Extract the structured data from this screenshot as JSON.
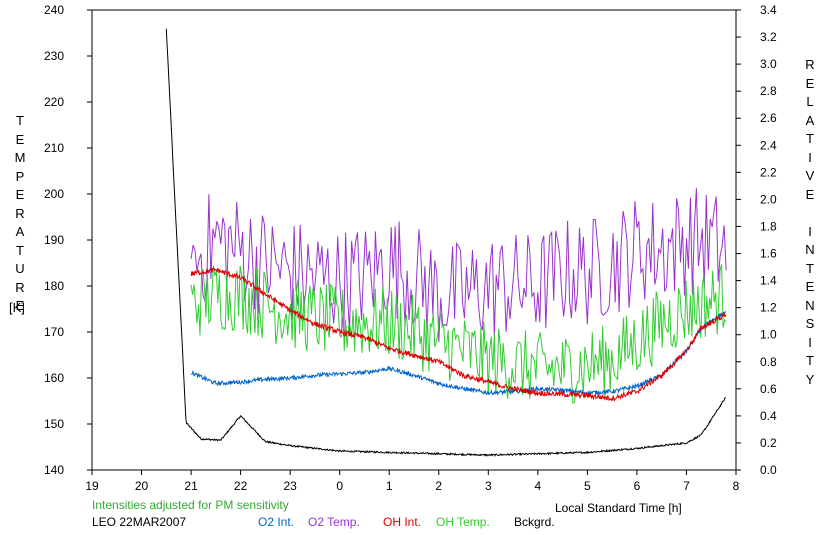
{
  "chart_data": {
    "type": "line",
    "xlabel": "Local Standard Time [h]",
    "ylabel": "TEMPERATURE",
    "ylabel_unit": "[K]",
    "y2label": "RELATIVE INTENSITY",
    "xlim": [
      19,
      32
    ],
    "ylim": [
      140,
      240
    ],
    "y2lim": [
      0,
      3.4
    ],
    "x_ticks": [
      19,
      20,
      21,
      22,
      23,
      24,
      25,
      26,
      27,
      28,
      29,
      30,
      31,
      32
    ],
    "x_tick_labels": [
      "19",
      "20",
      "21",
      "22",
      "23",
      "0",
      "1",
      "2",
      "3",
      "4",
      "5",
      "6",
      "7",
      "8"
    ],
    "y_ticks": [
      140,
      150,
      160,
      170,
      180,
      190,
      200,
      210,
      220,
      230,
      240
    ],
    "y2_ticks": [
      0.0,
      0.2,
      0.4,
      0.6,
      0.8,
      1.0,
      1.2,
      1.4,
      1.6,
      1.8,
      2.0,
      2.2,
      2.4,
      2.6,
      2.8,
      3.0,
      3.2,
      3.4
    ],
    "y2_tick_labels": [
      "0.0",
      "0.2",
      "0.4",
      "0.6",
      "0.8",
      "1.0",
      "1.2",
      "1.4",
      "1.6",
      "1.8",
      "2.0",
      "2.2",
      "2.4",
      "2.6",
      "2.8",
      "3.0",
      "3.2",
      "3.4"
    ],
    "series": [
      {
        "name": "O2 Int.",
        "axis": "right",
        "color": "#0066cc",
        "x": [
          21.0,
          21.5,
          22.0,
          22.5,
          23.0,
          23.5,
          24.0,
          24.5,
          25.0,
          25.5,
          26.0,
          26.5,
          27.0,
          27.5,
          28.0,
          28.5,
          29.0,
          29.5,
          30.0,
          30.5,
          31.0,
          31.3,
          31.8
        ],
        "y": [
          0.72,
          0.64,
          0.65,
          0.67,
          0.68,
          0.7,
          0.71,
          0.72,
          0.75,
          0.7,
          0.64,
          0.6,
          0.57,
          0.58,
          0.6,
          0.59,
          0.57,
          0.58,
          0.62,
          0.7,
          0.88,
          1.05,
          1.17
        ]
      },
      {
        "name": "O2 Temp.",
        "axis": "left",
        "color": "#9933cc",
        "x": [
          21.0,
          21.5,
          22.0,
          22.5,
          23.0,
          23.5,
          24.0,
          24.5,
          25.0,
          25.5,
          26.0,
          26.5,
          27.0,
          27.5,
          28.0,
          28.5,
          29.0,
          29.5,
          30.0,
          30.5,
          31.0,
          31.3,
          31.8
        ],
        "y": [
          185,
          190,
          188,
          185,
          183,
          182,
          181,
          182,
          185,
          182,
          178,
          178,
          180,
          180,
          180,
          183,
          183,
          185,
          188,
          188,
          190,
          190,
          188
        ]
      },
      {
        "name": "OH Int.",
        "axis": "right",
        "color": "#dd0000",
        "x": [
          21.0,
          21.5,
          22.0,
          22.5,
          23.0,
          23.5,
          24.0,
          24.5,
          25.0,
          25.5,
          26.0,
          26.5,
          27.0,
          27.5,
          28.0,
          28.5,
          29.0,
          29.5,
          30.0,
          30.5,
          31.0,
          31.3,
          31.8
        ],
        "y": [
          1.45,
          1.48,
          1.42,
          1.3,
          1.18,
          1.08,
          1.02,
          0.98,
          0.9,
          0.85,
          0.8,
          0.7,
          0.65,
          0.6,
          0.57,
          0.56,
          0.55,
          0.53,
          0.58,
          0.7,
          0.88,
          1.05,
          1.15
        ]
      },
      {
        "name": "OH Temp.",
        "axis": "left",
        "color": "#33cc33",
        "x": [
          21.0,
          21.5,
          22.0,
          22.5,
          23.0,
          23.5,
          24.0,
          24.5,
          25.0,
          25.5,
          26.0,
          26.5,
          27.0,
          27.5,
          28.0,
          28.5,
          29.0,
          29.5,
          30.0,
          30.5,
          31.0,
          31.3,
          31.8
        ],
        "y": [
          176,
          178,
          178,
          176,
          174,
          173,
          172,
          172,
          172,
          170,
          168,
          166,
          164,
          163,
          162,
          162,
          163,
          164,
          168,
          172,
          175,
          176,
          178
        ]
      },
      {
        "name": "Bckgrd.",
        "axis": "right",
        "color": "#000000",
        "x": [
          20.5,
          20.7,
          20.9,
          21.2,
          21.6,
          22.0,
          22.5,
          23.0,
          24.0,
          25.0,
          26.0,
          27.0,
          28.0,
          29.0,
          30.0,
          30.5,
          31.0,
          31.3,
          31.8
        ],
        "y": [
          3.26,
          1.8,
          0.35,
          0.23,
          0.22,
          0.4,
          0.21,
          0.18,
          0.14,
          0.13,
          0.12,
          0.11,
          0.12,
          0.13,
          0.16,
          0.18,
          0.2,
          0.26,
          0.54
        ]
      }
    ],
    "grid": false,
    "legend_position": "bottom"
  },
  "notes": {
    "pm_note": "Intensities adjusted for PM sensitivity",
    "station_date": "LEO 22MAR2007"
  },
  "colors": {
    "note_green": "#33aa33",
    "axis": "#000000"
  }
}
